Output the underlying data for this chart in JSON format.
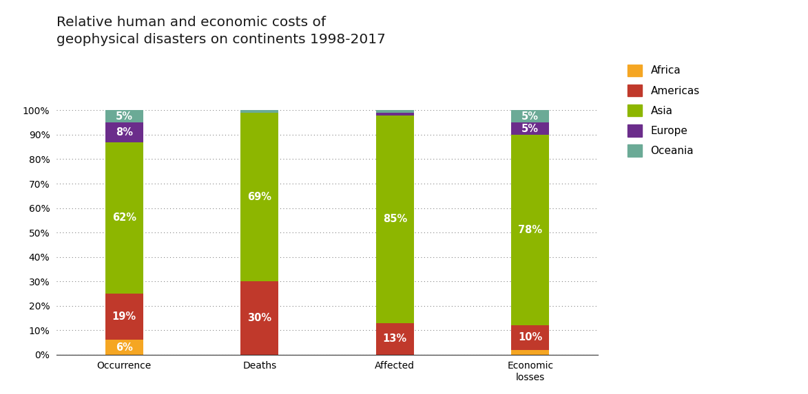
{
  "title": "Relative human and economic costs of\ngeophysical disasters on continents 1998-2017",
  "categories": [
    "Occurrence",
    "Deaths",
    "Affected",
    "Economic\nlosses"
  ],
  "regions": [
    "Africa",
    "Americas",
    "Asia",
    "Europe",
    "Oceania"
  ],
  "colors": {
    "Africa": "#F5A623",
    "Americas": "#C0392B",
    "Asia": "#8DB600",
    "Europe": "#6B2D8B",
    "Oceania": "#6BAA96"
  },
  "data": {
    "Africa": [
      6,
      0,
      0,
      2
    ],
    "Americas": [
      19,
      30,
      13,
      10
    ],
    "Asia": [
      62,
      69,
      85,
      78
    ],
    "Europe": [
      8,
      0,
      1,
      5
    ],
    "Oceania": [
      5,
      1,
      1,
      5
    ]
  },
  "labels": {
    "Africa": [
      "6%",
      "",
      "",
      ""
    ],
    "Americas": [
      "19%",
      "30%",
      "13%",
      "10%"
    ],
    "Asia": [
      "62%",
      "69%",
      "85%",
      "78%"
    ],
    "Europe": [
      "8%",
      "",
      "",
      "5%"
    ],
    "Oceania": [
      "5%",
      "",
      "",
      "5%"
    ]
  },
  "ylim": [
    0,
    100
  ],
  "background_color": "#ffffff",
  "title_fontsize": 14.5,
  "label_fontsize": 10.5,
  "tick_fontsize": 10,
  "legend_fontsize": 11,
  "bar_width": 0.28
}
